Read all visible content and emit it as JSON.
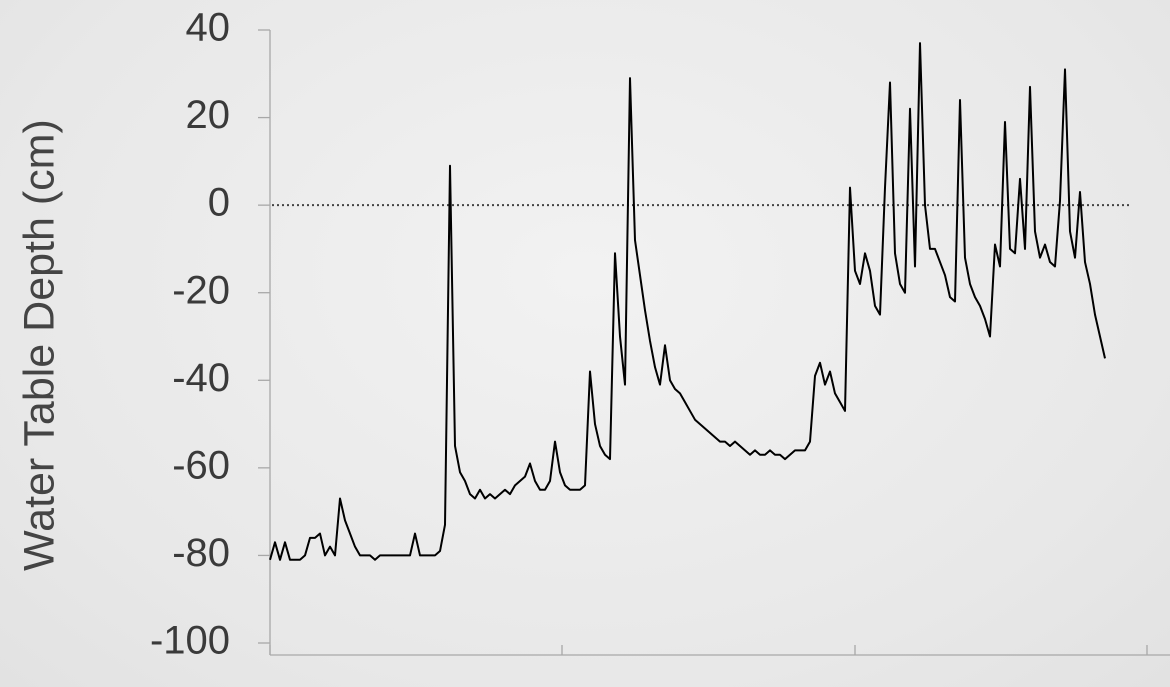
{
  "chart_data": {
    "type": "line",
    "y_label": "Water Table Depth (cm)",
    "ylim": [
      -100,
      40
    ],
    "yticks": [
      -100,
      -80,
      -60,
      -40,
      -20,
      0,
      20,
      40
    ],
    "reference_line": 0,
    "series": [
      {
        "color": "#000000",
        "values": [
          -81,
          -77,
          -81,
          -77,
          -81,
          -81,
          -81,
          -80,
          -76,
          -76,
          -75,
          -80,
          -78,
          -80,
          -67,
          -72,
          -75,
          -78,
          -80,
          -80,
          -80,
          -81,
          -80,
          -80,
          -80,
          -80,
          -80,
          -80,
          -80,
          -75,
          -80,
          -80,
          -80,
          -80,
          -79,
          -73,
          9,
          -55,
          -61,
          -63,
          -66,
          -67,
          -65,
          -67,
          -66,
          -67,
          -66,
          -65,
          -66,
          -64,
          -63,
          -62,
          -59,
          -63,
          -65,
          -65,
          -63,
          -54,
          -61,
          -64,
          -65,
          -65,
          -65,
          -64,
          -38,
          -50,
          -55,
          -57,
          -58,
          -11,
          -30,
          -41,
          29,
          -8,
          -16,
          -24,
          -31,
          -37,
          -41,
          -32,
          -40,
          -42,
          -43,
          -45,
          -47,
          -49,
          -50,
          -51,
          -52,
          -53,
          -54,
          -54,
          -55,
          -54,
          -55,
          -56,
          -57,
          -56,
          -57,
          -57,
          -56,
          -57,
          -57,
          -58,
          -57,
          -56,
          -56,
          -56,
          -54,
          -39,
          -36,
          -41,
          -38,
          -43,
          -45,
          -47,
          4,
          -15,
          -18,
          -11,
          -15,
          -23,
          -25,
          4,
          28,
          -11,
          -18,
          -20,
          22,
          -14,
          37,
          0,
          -10,
          -10,
          -13,
          -16,
          -21,
          -22,
          24,
          -12,
          -18,
          -21,
          -23,
          -26,
          -30,
          -9,
          -14,
          19,
          -10,
          -11,
          6,
          -10,
          27,
          -6,
          -12,
          -9,
          -13,
          -14,
          1,
          31,
          -6,
          -12,
          3,
          -13,
          -18,
          -25,
          -30,
          -35
        ]
      }
    ]
  }
}
